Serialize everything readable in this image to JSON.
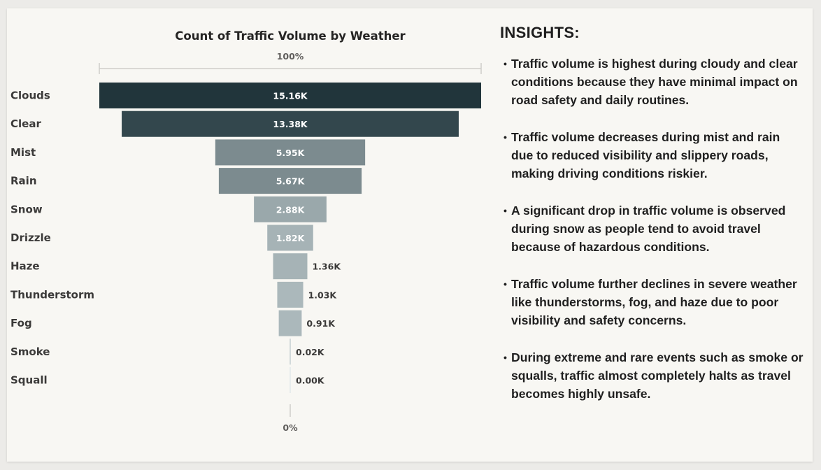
{
  "chart_data": {
    "type": "funnel",
    "title": "Count of Traffic Volume by Weather",
    "top_label": "100%",
    "bottom_label": "0%",
    "categories": [
      "Clouds",
      "Clear",
      "Mist",
      "Rain",
      "Snow",
      "Drizzle",
      "Haze",
      "Thunderstorm",
      "Fog",
      "Smoke",
      "Squall"
    ],
    "values": [
      15160,
      13380,
      5950,
      5670,
      2880,
      1820,
      1360,
      1030,
      910,
      20,
      0
    ],
    "value_labels": [
      "15.16K",
      "13.38K",
      "5.95K",
      "5.67K",
      "2.88K",
      "1.82K",
      "1.36K",
      "1.03K",
      "0.91K",
      "0.02K",
      "0.00K"
    ],
    "colors": [
      "#21353b",
      "#33474d",
      "#7c8b8f",
      "#7c8b8f",
      "#9aa8ab",
      "#a6b3b6",
      "#a6b3b6",
      "#abb8bb",
      "#abb8bb",
      "#c6cfd1",
      "#e3e8e9"
    ]
  },
  "insights": {
    "title": "INSIGHTS:",
    "bullet": "•",
    "items": [
      "Traffic volume is highest during cloudy and clear conditions because they have minimal impact on road safety and daily routines.",
      "Traffic volume decreases during mist and rain due to reduced visibility and slippery roads, making driving conditions riskier.",
      "A significant drop in traffic volume is observed during snow as people tend to avoid travel because of hazardous conditions.",
      "Traffic volume further declines in severe weather like thunderstorms, fog, and haze due to poor visibility and safety concerns.",
      "During extreme and rare events such as smoke or squalls, traffic almost completely halts as travel becomes highly unsafe."
    ]
  }
}
